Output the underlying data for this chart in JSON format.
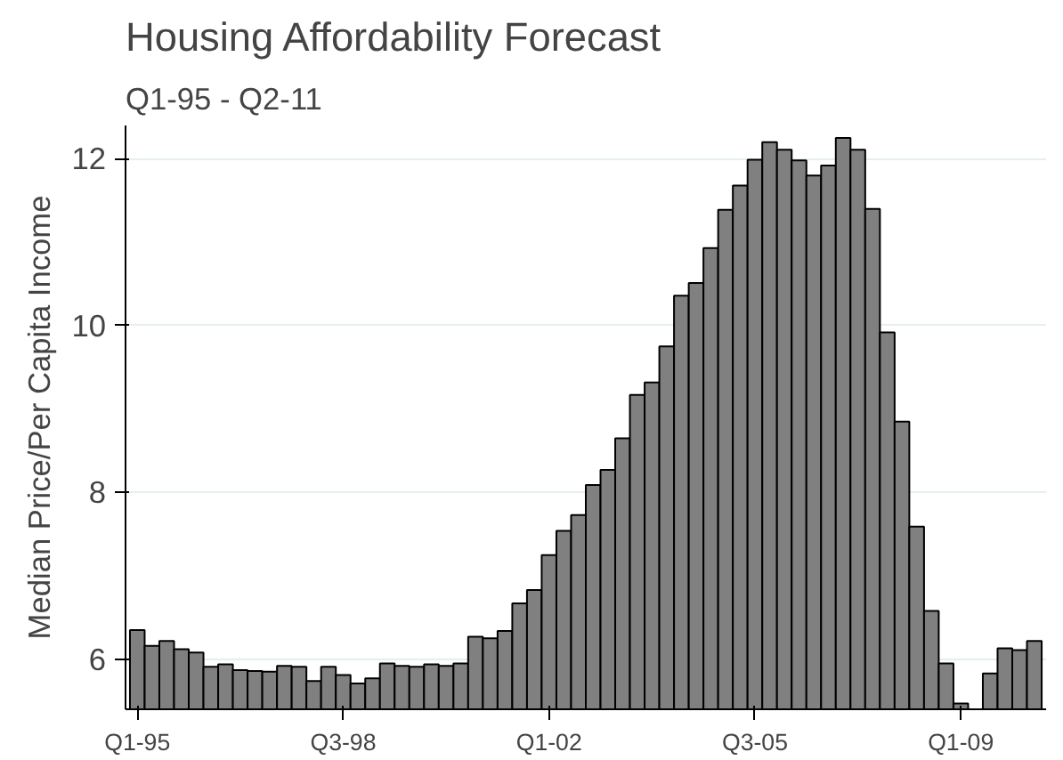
{
  "chart_data": {
    "type": "bar",
    "title": "Housing Affordability Forecast",
    "subtitle": "Q1-95 - Q2-11",
    "ylabel": "Median Price/Per Capita Income",
    "categories": [
      "Q1-95",
      null,
      null,
      null,
      null,
      null,
      null,
      null,
      null,
      null,
      null,
      null,
      null,
      null,
      "Q3-98",
      null,
      null,
      null,
      null,
      null,
      null,
      null,
      null,
      null,
      null,
      null,
      null,
      null,
      "Q1-02",
      null,
      null,
      null,
      null,
      null,
      null,
      null,
      null,
      null,
      null,
      null,
      null,
      null,
      "Q3-05",
      null,
      null,
      null,
      null,
      null,
      null,
      null,
      null,
      null,
      null,
      null,
      null,
      null,
      "Q1-09",
      null,
      null,
      null,
      null,
      null
    ],
    "values": [
      6.35,
      6.16,
      6.22,
      6.12,
      6.08,
      5.91,
      5.94,
      5.87,
      5.86,
      5.85,
      5.92,
      5.91,
      5.74,
      5.91,
      5.81,
      5.71,
      5.77,
      5.95,
      5.92,
      5.91,
      5.94,
      5.92,
      5.95,
      6.27,
      6.25,
      6.34,
      6.67,
      6.83,
      7.25,
      7.54,
      7.73,
      8.09,
      8.27,
      8.65,
      9.17,
      9.32,
      9.75,
      10.36,
      10.51,
      10.93,
      11.39,
      11.68,
      11.99,
      12.2,
      12.11,
      11.98,
      11.8,
      11.92,
      12.25,
      12.11,
      11.4,
      9.92,
      8.85,
      7.59,
      6.58,
      5.95,
      5.47,
      null,
      5.83,
      6.13,
      6.11,
      6.22
    ],
    "color": "#808080",
    "ylim": [
      5.4,
      12.4
    ],
    "yticks": [
      6,
      8,
      10,
      12
    ],
    "grid": "y"
  }
}
